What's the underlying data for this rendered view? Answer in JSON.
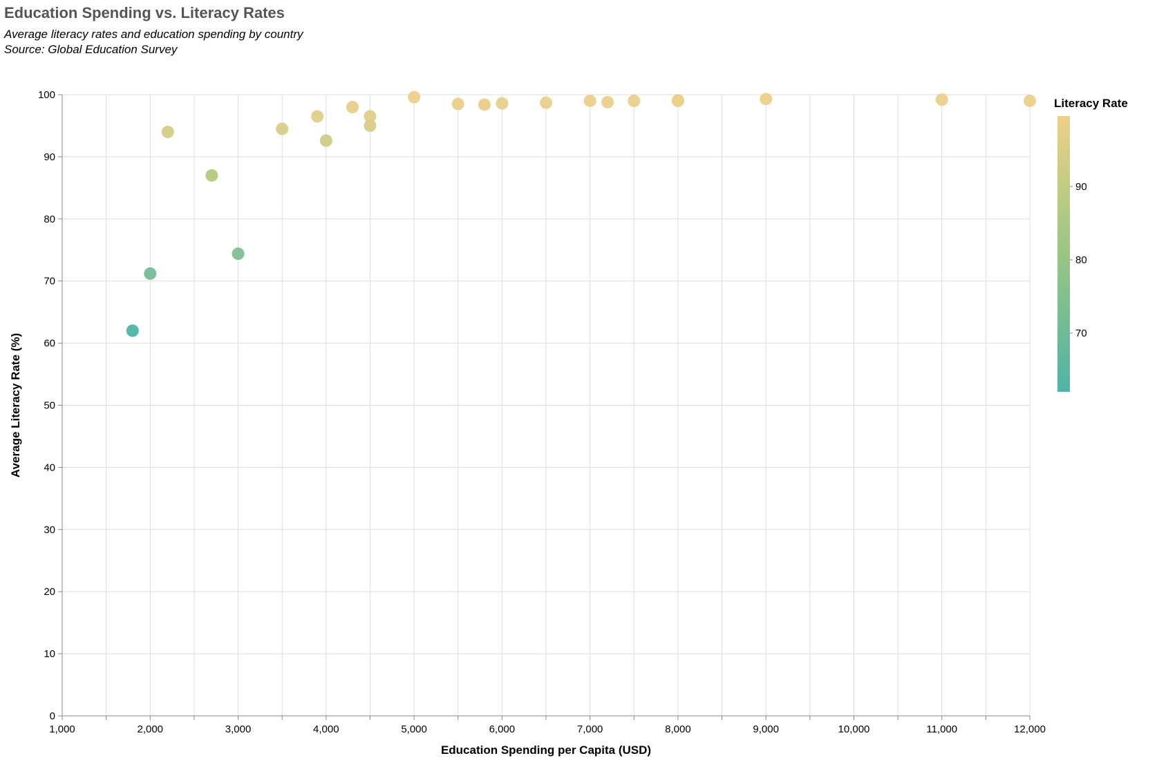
{
  "chart_data": {
    "type": "scatter",
    "title": "Education Spending vs. Literacy Rates",
    "subtitle": [
      "Average literacy rates and education spending by country",
      "Source: Global Education Survey"
    ],
    "xlabel": "Education Spending per Capita (USD)",
    "ylabel": "Average Literacy Rate (%)",
    "xlim": [
      1000,
      12000
    ],
    "ylim": [
      0,
      100
    ],
    "x_ticks": [
      1000,
      2000,
      3000,
      4000,
      5000,
      6000,
      7000,
      8000,
      9000,
      10000,
      11000,
      12000
    ],
    "x_tick_labels": [
      "1,000",
      "2,000",
      "3,000",
      "4,000",
      "5,000",
      "6,000",
      "7,000",
      "8,000",
      "9,000",
      "10,000",
      "11,000",
      "12,000"
    ],
    "y_ticks": [
      0,
      10,
      20,
      30,
      40,
      50,
      60,
      70,
      80,
      90,
      100
    ],
    "y_tick_labels": [
      "0",
      "10",
      "20",
      "30",
      "40",
      "50",
      "60",
      "70",
      "80",
      "90",
      "100"
    ],
    "grid": true,
    "legend": {
      "title": "Literacy Rate",
      "placement": "right",
      "ticks": [
        70,
        80,
        90
      ],
      "tick_labels": [
        "70",
        "80",
        "90"
      ],
      "range": [
        62,
        99.6
      ]
    },
    "colors": {
      "low": "#4fb3a6",
      "mid": "#a8c97d",
      "high": "#edd08a",
      "grid": "#dddddd",
      "axis": "#888888",
      "title": "#555555"
    },
    "points": [
      {
        "x": 1800,
        "y": 62.0
      },
      {
        "x": 2000,
        "y": 71.2
      },
      {
        "x": 2200,
        "y": 94.0
      },
      {
        "x": 2700,
        "y": 87.0
      },
      {
        "x": 3000,
        "y": 74.4
      },
      {
        "x": 3500,
        "y": 94.5
      },
      {
        "x": 3900,
        "y": 96.5
      },
      {
        "x": 4000,
        "y": 92.6
      },
      {
        "x": 4300,
        "y": 98.0
      },
      {
        "x": 4500,
        "y": 96.5
      },
      {
        "x": 4500,
        "y": 95.0
      },
      {
        "x": 5000,
        "y": 99.6
      },
      {
        "x": 5500,
        "y": 98.5
      },
      {
        "x": 5800,
        "y": 98.4
      },
      {
        "x": 6000,
        "y": 98.6
      },
      {
        "x": 6500,
        "y": 98.7
      },
      {
        "x": 7000,
        "y": 99.0
      },
      {
        "x": 7200,
        "y": 98.8
      },
      {
        "x": 7500,
        "y": 99.0
      },
      {
        "x": 8000,
        "y": 99.0
      },
      {
        "x": 8000,
        "y": 99.1
      },
      {
        "x": 9000,
        "y": 99.3
      },
      {
        "x": 11000,
        "y": 99.2
      },
      {
        "x": 12000,
        "y": 99.0
      }
    ]
  }
}
